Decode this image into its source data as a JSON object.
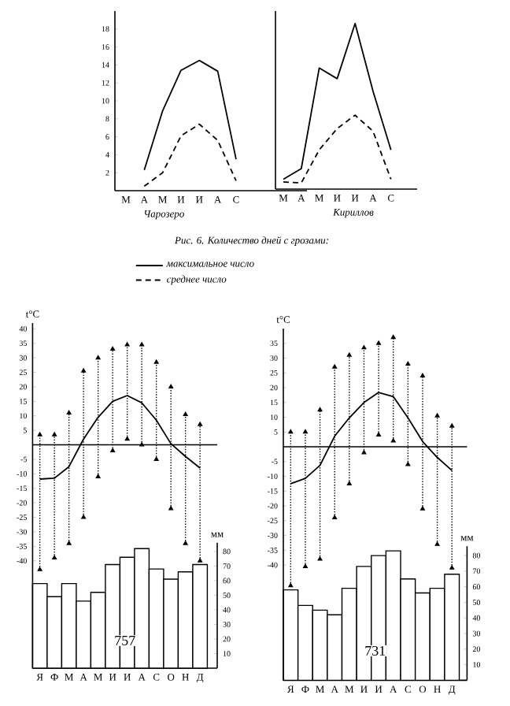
{
  "chart_data": [
    {
      "type": "line",
      "xlabel": "Чарозеро",
      "annotations": [
        "Рис. 6. Количество дней с грозами:"
      ],
      "categories": [
        "М",
        "А",
        "М",
        "И",
        "И",
        "А",
        "С"
      ],
      "ylim": [
        0,
        20
      ],
      "yticks": [
        2,
        4,
        6,
        8,
        10,
        12,
        14,
        16,
        18
      ],
      "legend": "bottom",
      "marker": "none",
      "series": [
        {
          "name": "максимальное число",
          "color": "#000000",
          "line_style": "solid",
          "values": [
            null,
            2.3,
            8.9,
            13.4,
            14.5,
            13.3,
            3.5
          ]
        },
        {
          "name": "среднее число",
          "color": "#000000",
          "line_style": "dashed",
          "values": [
            null,
            0.5,
            2,
            6.1,
            7.4,
            5.6,
            1.1
          ]
        }
      ]
    },
    {
      "type": "line",
      "xlabel": "Кириллов",
      "categories": [
        "М",
        "А",
        "М",
        "И",
        "И",
        "А",
        "С"
      ],
      "ylim": [
        0,
        20
      ],
      "tick_labels": "x",
      "marker": "none",
      "series": [
        {
          "color": "#000000",
          "line_style": "solid",
          "values": [
            1.1,
            2.3,
            13.6,
            12.4,
            18.6,
            11,
            4.4
          ]
        },
        {
          "color": "#000000",
          "line_style": "dashed",
          "values": [
            0.8,
            0.7,
            4.4,
            6.8,
            8.3,
            6.5,
            1.1
          ]
        }
      ]
    },
    {
      "type": "line",
      "ylabel": "t°C",
      "y2label": "мм",
      "annotations": [
        "757"
      ],
      "categories": [
        "Я",
        "Ф",
        "М",
        "А",
        "М",
        "И",
        "И",
        "А",
        "С",
        "О",
        "Н",
        "Д"
      ],
      "ylim": [
        -77,
        42
      ],
      "yticks": [
        -40,
        -35,
        -30,
        -25,
        -20,
        -15,
        -10,
        -5,
        5,
        10,
        15,
        20,
        25,
        30,
        35,
        40
      ],
      "y2lim": [
        0,
        86
      ],
      "y2ticks": [
        10,
        20,
        30,
        40,
        50,
        60,
        70,
        80
      ],
      "ref_lines": [
        {
          "axis": "y",
          "value": 0
        }
      ],
      "marker": "none",
      "series": [
        {
          "type": "bar",
          "axis": "y2",
          "color": "#ffffff",
          "values": [
            58,
            49,
            58,
            46,
            52,
            71,
            76,
            82,
            68,
            61,
            66,
            71
          ]
        },
        {
          "type": "line",
          "color": "#000000",
          "values": [
            -11.8,
            -11.5,
            -7.5,
            2,
            9.5,
            15,
            17,
            14.5,
            8.5,
            0.4,
            -4,
            -8
          ],
          "errors": [
            [
              -43,
              3.5
            ],
            [
              -39,
              3.5
            ],
            [
              -34,
              11
            ],
            [
              -25,
              25.5
            ],
            [
              -11,
              30
            ],
            [
              -2,
              33
            ],
            [
              2,
              34.5
            ],
            [
              0,
              34.5
            ],
            [
              -5,
              28.5
            ],
            [
              -22,
              20
            ],
            [
              -34,
              10.5
            ],
            [
              -40,
              7
            ]
          ]
        }
      ]
    },
    {
      "type": "line",
      "ylabel": "t°C",
      "y2label": "мм",
      "annotations": [
        "731"
      ],
      "categories": [
        "Я",
        "Ф",
        "М",
        "А",
        "М",
        "И",
        "И",
        "А",
        "С",
        "О",
        "Н",
        "Д"
      ],
      "ylim": [
        -79,
        40
      ],
      "yticks": [
        -40,
        -35,
        -30,
        -25,
        -20,
        -15,
        -10,
        -5,
        5,
        10,
        15,
        20,
        25,
        30,
        35
      ],
      "y2lim": [
        0,
        86
      ],
      "y2ticks": [
        10,
        20,
        30,
        40,
        50,
        60,
        70,
        80
      ],
      "ref_lines": [
        {
          "axis": "y",
          "value": 0
        }
      ],
      "marker": "none",
      "series": [
        {
          "type": "bar",
          "axis": "y2",
          "color": "#ffffff",
          "values": [
            58,
            48,
            45,
            42,
            59,
            73,
            80,
            83,
            65,
            56,
            59,
            68
          ]
        },
        {
          "type": "line",
          "color": "#000000",
          "values": [
            -12.5,
            -10.7,
            -6.3,
            3.6,
            9.8,
            15,
            18.4,
            17,
            9.8,
            1.8,
            -3.6,
            -8
          ],
          "errors": [
            [
              -47,
              5
            ],
            [
              -40.5,
              5
            ],
            [
              -38,
              12.5
            ],
            [
              -24,
              27
            ],
            [
              -12.5,
              31
            ],
            [
              -2,
              33.5
            ],
            [
              4,
              35
            ],
            [
              2,
              37
            ],
            [
              -6,
              28
            ],
            [
              -21,
              24
            ],
            [
              -33,
              10.5
            ],
            [
              -41,
              7
            ]
          ]
        }
      ]
    }
  ]
}
